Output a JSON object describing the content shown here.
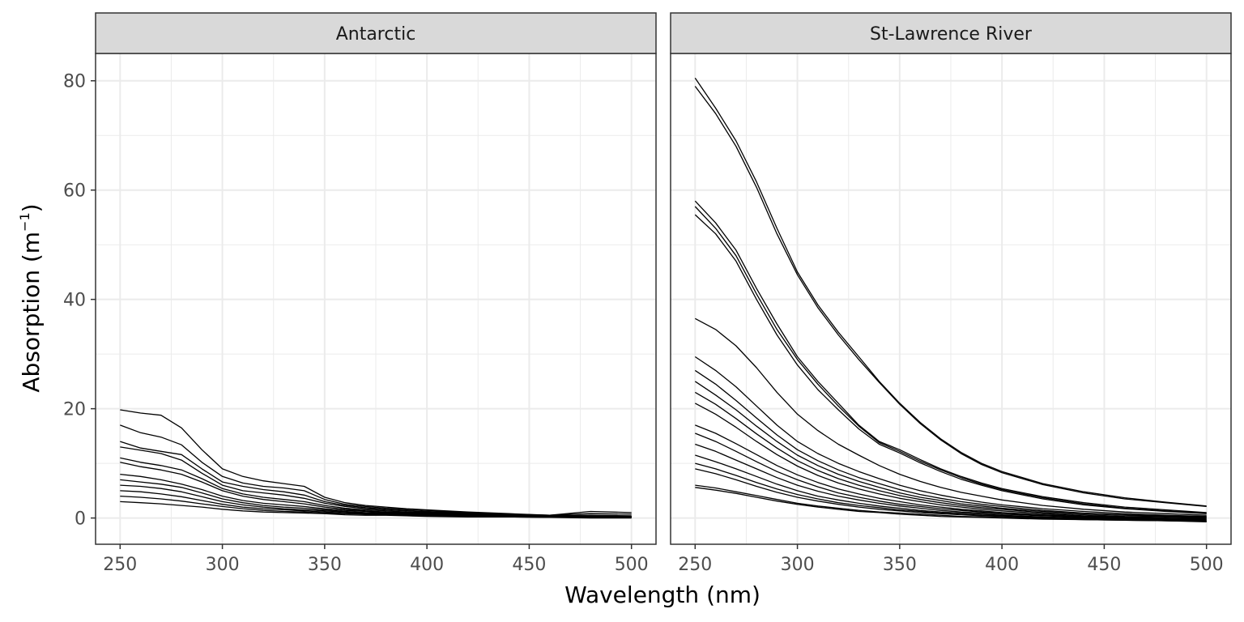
{
  "chart_data": {
    "type": "line",
    "xlabel": "Wavelength (nm)",
    "ylabel_main": "Absorption (m",
    "ylabel_sup": "−1",
    "ylabel_close": ")",
    "xlim": [
      238,
      512
    ],
    "ylim": [
      -4.8,
      85
    ],
    "x_ticks": [
      250,
      300,
      350,
      400,
      450,
      500
    ],
    "y_ticks": [
      0,
      20,
      40,
      60,
      80
    ],
    "grid": true,
    "legend": "none",
    "line_color": "#000000",
    "x": [
      250,
      260,
      270,
      280,
      290,
      300,
      310,
      320,
      330,
      340,
      350,
      360,
      370,
      380,
      390,
      400,
      420,
      440,
      460,
      480,
      500
    ],
    "panels": [
      {
        "name": "Antarctic",
        "series": [
          {
            "values": [
              19.8,
              19.2,
              18.8,
              16.5,
              12.5,
              9.0,
              7.6,
              6.8,
              6.3,
              5.8,
              3.8,
              2.8,
              2.3,
              2.0,
              1.7,
              1.5,
              1.1,
              0.8,
              0.5,
              1.2,
              1.0
            ]
          },
          {
            "values": [
              17.0,
              15.6,
              14.8,
              13.4,
              10.2,
              7.6,
              6.4,
              5.8,
              5.5,
              5.0,
              3.4,
              2.5,
              2.1,
              1.8,
              1.6,
              1.4,
              1.0,
              0.7,
              0.5,
              0.8,
              0.7
            ]
          },
          {
            "values": [
              14.0,
              12.8,
              12.2,
              11.6,
              9.0,
              6.6,
              5.8,
              5.2,
              4.8,
              4.2,
              3.0,
              2.3,
              1.9,
              1.6,
              1.4,
              1.2,
              0.9,
              0.6,
              0.4,
              0.5,
              0.4
            ]
          },
          {
            "values": [
              13.0,
              12.4,
              11.8,
              10.6,
              8.2,
              6.0,
              5.0,
              4.6,
              4.2,
              3.6,
              2.7,
              2.1,
              1.7,
              1.5,
              1.3,
              1.1,
              0.8,
              0.6,
              0.4,
              0.4,
              0.3
            ]
          },
          {
            "values": [
              11.0,
              10.2,
              9.6,
              8.8,
              7.2,
              5.4,
              4.4,
              3.8,
              3.4,
              3.0,
              2.3,
              1.8,
              1.5,
              1.3,
              1.1,
              1.0,
              0.7,
              0.5,
              0.3,
              0.3,
              0.3
            ]
          },
          {
            "values": [
              10.2,
              9.4,
              8.8,
              8.0,
              6.6,
              5.0,
              4.0,
              3.4,
              3.0,
              2.6,
              2.0,
              1.6,
              1.3,
              1.1,
              1.0,
              0.9,
              0.6,
              0.5,
              0.3,
              0.3,
              0.2
            ]
          },
          {
            "values": [
              8.0,
              7.6,
              7.0,
              6.2,
              5.2,
              4.0,
              3.2,
              2.7,
              2.4,
              2.1,
              1.7,
              1.4,
              1.2,
              1.0,
              0.9,
              0.8,
              0.6,
              0.4,
              0.3,
              0.2,
              0.2
            ]
          },
          {
            "values": [
              7.0,
              6.6,
              6.2,
              5.6,
              4.6,
              3.5,
              2.8,
              2.3,
              2.0,
              1.8,
              1.5,
              1.2,
              1.0,
              0.9,
              0.8,
              0.7,
              0.5,
              0.4,
              0.2,
              0.2,
              0.1
            ]
          },
          {
            "values": [
              6.0,
              5.8,
              5.4,
              4.8,
              3.9,
              3.0,
              2.4,
              2.0,
              1.7,
              1.5,
              1.3,
              1.1,
              0.9,
              0.8,
              0.7,
              0.6,
              0.4,
              0.3,
              0.2,
              0.1,
              0.1
            ]
          },
          {
            "values": [
              5.0,
              4.8,
              4.4,
              3.9,
              3.2,
              2.5,
              2.0,
              1.7,
              1.5,
              1.3,
              1.1,
              0.9,
              0.8,
              0.7,
              0.6,
              0.5,
              0.4,
              0.3,
              0.2,
              0.1,
              0.1
            ]
          },
          {
            "values": [
              4.0,
              3.8,
              3.5,
              3.1,
              2.6,
              2.1,
              1.7,
              1.4,
              1.2,
              1.1,
              0.9,
              0.8,
              0.7,
              0.6,
              0.5,
              0.4,
              0.3,
              0.2,
              0.1,
              0.1,
              0.1
            ]
          },
          {
            "values": [
              3.0,
              2.8,
              2.6,
              2.3,
              2.0,
              1.6,
              1.3,
              1.1,
              1.0,
              0.9,
              0.8,
              0.6,
              0.5,
              0.5,
              0.4,
              0.3,
              0.2,
              0.2,
              0.1,
              0.0,
              0.0
            ]
          }
        ]
      },
      {
        "name": "St-Lawrence River",
        "series": [
          {
            "values": [
              80.5,
              75.0,
              69.0,
              61.5,
              53.0,
              45.0,
              39.0,
              34.0,
              29.5,
              25.0,
              21.0,
              17.5,
              14.5,
              12.0,
              10.0,
              8.5,
              6.3,
              4.8,
              3.7,
              2.9,
              2.2
            ]
          },
          {
            "values": [
              79.0,
              74.0,
              68.0,
              60.5,
              52.0,
              44.5,
              38.5,
              33.5,
              29.0,
              24.8,
              20.8,
              17.3,
              14.3,
              11.8,
              9.8,
              8.3,
              6.1,
              4.6,
              3.5,
              2.8,
              2.1
            ]
          },
          {
            "values": [
              58.0,
              54.0,
              49.0,
              42.0,
              35.5,
              29.5,
              25.0,
              21.0,
              17.0,
              14.0,
              12.5,
              10.7,
              9.0,
              7.6,
              6.4,
              5.4,
              3.9,
              2.8,
              2.0,
              1.5,
              1.0
            ]
          },
          {
            "values": [
              57.0,
              53.0,
              48.0,
              41.0,
              34.5,
              29.0,
              24.5,
              20.5,
              16.8,
              13.8,
              12.2,
              10.4,
              8.8,
              7.4,
              6.2,
              5.2,
              3.7,
              2.6,
              1.8,
              1.3,
              0.9
            ]
          },
          {
            "values": [
              55.5,
              52.0,
              47.0,
              40.0,
              33.5,
              28.0,
              23.5,
              19.8,
              16.3,
              13.5,
              11.9,
              10.1,
              8.5,
              7.1,
              6.0,
              5.0,
              3.5,
              2.4,
              1.7,
              1.2,
              0.8
            ]
          },
          {
            "values": [
              36.5,
              34.5,
              31.5,
              27.5,
              23.0,
              19.0,
              16.0,
              13.5,
              11.5,
              9.6,
              8.0,
              6.7,
              5.6,
              4.7,
              4.0,
              3.3,
              2.3,
              1.6,
              1.1,
              0.8,
              0.5
            ]
          },
          {
            "values": [
              29.5,
              27.0,
              24.0,
              20.5,
              17.0,
              14.0,
              11.8,
              10.0,
              8.5,
              7.2,
              6.0,
              5.0,
              4.2,
              3.5,
              2.9,
              2.4,
              1.7,
              1.2,
              0.8,
              0.5,
              0.3
            ]
          },
          {
            "values": [
              27.0,
              24.5,
              21.5,
              18.3,
              15.2,
              12.5,
              10.5,
              8.8,
              7.4,
              6.3,
              5.2,
              4.3,
              3.6,
              3.0,
              2.5,
              2.1,
              1.4,
              0.9,
              0.6,
              0.4,
              0.2
            ]
          },
          {
            "values": [
              25.0,
              22.5,
              19.8,
              16.8,
              14.0,
              11.5,
              9.6,
              8.0,
              6.7,
              5.6,
              4.6,
              3.8,
              3.2,
              2.6,
              2.2,
              1.8,
              1.2,
              0.8,
              0.5,
              0.3,
              0.1
            ]
          },
          {
            "values": [
              23.0,
              20.8,
              18.2,
              15.4,
              12.8,
              10.5,
              8.7,
              7.2,
              6.0,
              5.0,
              4.1,
              3.4,
              2.8,
              2.3,
              1.9,
              1.6,
              1.0,
              0.6,
              0.3,
              0.2,
              0.0
            ]
          },
          {
            "values": [
              21.0,
              19.0,
              16.6,
              14.0,
              11.6,
              9.5,
              7.8,
              6.4,
              5.3,
              4.4,
              3.6,
              3.0,
              2.4,
              2.0,
              1.6,
              1.3,
              0.8,
              0.4,
              0.2,
              0.0,
              -0.1
            ]
          },
          {
            "values": [
              17.0,
              15.5,
              13.6,
              11.6,
              9.6,
              7.9,
              6.5,
              5.3,
              4.4,
              3.6,
              3.0,
              2.4,
              2.0,
              1.6,
              1.3,
              1.0,
              0.6,
              0.3,
              0.1,
              -0.1,
              -0.2
            ]
          },
          {
            "values": [
              15.5,
              14.0,
              12.2,
              10.3,
              8.5,
              7.0,
              5.7,
              4.6,
              3.8,
              3.1,
              2.5,
              2.1,
              1.7,
              1.4,
              1.1,
              0.9,
              0.5,
              0.2,
              0.0,
              -0.2,
              -0.3
            ]
          },
          {
            "values": [
              13.5,
              12.2,
              10.6,
              9.0,
              7.4,
              6.0,
              4.9,
              4.0,
              3.3,
              2.7,
              2.2,
              1.8,
              1.4,
              1.1,
              0.9,
              0.7,
              0.4,
              0.1,
              -0.1,
              -0.2,
              -0.4
            ]
          },
          {
            "values": [
              11.5,
              10.3,
              9.0,
              7.6,
              6.2,
              5.0,
              4.0,
              3.3,
              2.7,
              2.2,
              1.8,
              1.4,
              1.1,
              0.9,
              0.7,
              0.5,
              0.2,
              0.0,
              -0.2,
              -0.3,
              -0.5
            ]
          },
          {
            "values": [
              10.0,
              9.0,
              7.8,
              6.5,
              5.3,
              4.3,
              3.5,
              2.8,
              2.3,
              1.9,
              1.5,
              1.2,
              0.9,
              0.7,
              0.5,
              0.4,
              0.1,
              -0.1,
              -0.3,
              -0.4,
              -0.6
            ]
          },
          {
            "values": [
              9.0,
              8.1,
              7.0,
              5.8,
              4.7,
              3.8,
              3.1,
              2.5,
              2.0,
              1.6,
              1.3,
              1.0,
              0.8,
              0.6,
              0.4,
              0.3,
              0.0,
              -0.2,
              -0.3,
              -0.5,
              -0.6
            ]
          },
          {
            "values": [
              6.0,
              5.5,
              4.8,
              4.1,
              3.4,
              2.7,
              2.2,
              1.8,
              1.4,
              1.1,
              0.9,
              0.7,
              0.5,
              0.3,
              0.2,
              0.1,
              -0.1,
              -0.3,
              -0.4,
              -0.5,
              -0.6
            ]
          },
          {
            "values": [
              5.6,
              5.1,
              4.5,
              3.8,
              3.1,
              2.5,
              2.0,
              1.6,
              1.2,
              1.0,
              0.7,
              0.5,
              0.3,
              0.2,
              0.1,
              0.0,
              -0.2,
              -0.3,
              -0.4,
              -0.5,
              -0.7
            ]
          }
        ]
      }
    ]
  }
}
